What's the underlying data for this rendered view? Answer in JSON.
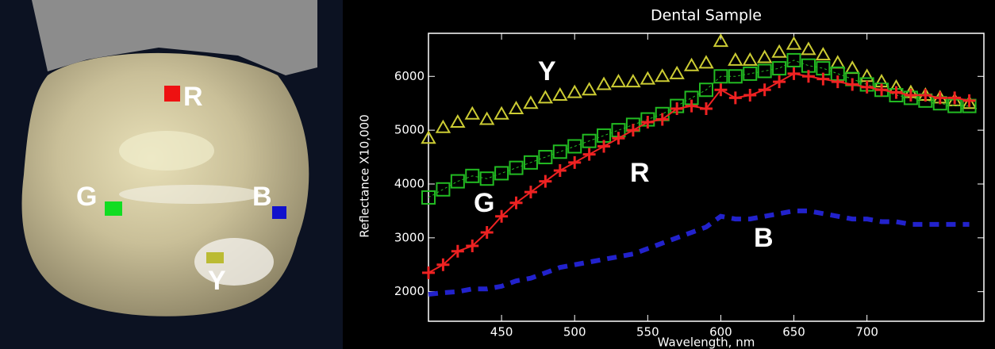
{
  "photo": {
    "labels": [
      "R",
      "G",
      "B",
      "Y"
    ]
  },
  "chart_data": {
    "type": "line",
    "title": "Dental Sample",
    "x_label": "Wavelength, nm",
    "y_label": "Reflectance X10,000",
    "x": [
      400,
      410,
      420,
      430,
      440,
      450,
      460,
      470,
      480,
      490,
      500,
      510,
      520,
      530,
      540,
      550,
      560,
      570,
      580,
      590,
      600,
      610,
      620,
      630,
      640,
      650,
      660,
      670,
      680,
      690,
      700,
      710,
      720,
      730,
      740,
      750,
      760,
      770
    ],
    "xlim": [
      400,
      780
    ],
    "xticks": [
      450,
      500,
      550,
      600,
      650,
      700
    ],
    "ylim": [
      1450,
      6800
    ],
    "yticks": [
      2000,
      3000,
      4000,
      5000,
      6000
    ],
    "series": [
      {
        "name": "Y",
        "color": "#cccc33",
        "values": [
          4850,
          5050,
          5150,
          5300,
          5200,
          5300,
          5400,
          5500,
          5600,
          5650,
          5700,
          5750,
          5850,
          5900,
          5900,
          5950,
          6000,
          6050,
          6200,
          6250,
          6650,
          6300,
          6300,
          6350,
          6450,
          6600,
          6500,
          6400,
          6250,
          6150,
          6000,
          5900,
          5800,
          5700,
          5650,
          5600,
          5550,
          5500
        ]
      },
      {
        "name": "G",
        "color": "#22bb22",
        "values": [
          3750,
          3900,
          4050,
          4150,
          4100,
          4200,
          4300,
          4400,
          4500,
          4600,
          4700,
          4800,
          4900,
          5000,
          5100,
          5200,
          5300,
          5450,
          5600,
          5750,
          6000,
          6000,
          6050,
          6100,
          6150,
          6300,
          6200,
          6150,
          6050,
          5950,
          5850,
          5750,
          5650,
          5600,
          5550,
          5500,
          5450,
          5450
        ]
      },
      {
        "name": "R",
        "color": "#ee2222",
        "values": [
          2350,
          2500,
          2750,
          2850,
          3100,
          3400,
          3650,
          3850,
          4050,
          4250,
          4400,
          4550,
          4700,
          4850,
          5000,
          5150,
          5200,
          5400,
          5450,
          5400,
          5750,
          5600,
          5650,
          5750,
          5900,
          6050,
          6000,
          5950,
          5900,
          5850,
          5800,
          5750,
          5700,
          5650,
          5650,
          5600,
          5600,
          5550
        ]
      },
      {
        "name": "B",
        "color": "#2222cc",
        "values": [
          1950,
          1980,
          2000,
          2050,
          2050,
          2100,
          2200,
          2250,
          2350,
          2450,
          2500,
          2550,
          2600,
          2650,
          2700,
          2800,
          2900,
          3000,
          3100,
          3200,
          3400,
          3350,
          3350,
          3400,
          3450,
          3500,
          3500,
          3450,
          3400,
          3350,
          3350,
          3300,
          3300,
          3250,
          3250,
          3250,
          3250,
          3250
        ]
      }
    ]
  }
}
